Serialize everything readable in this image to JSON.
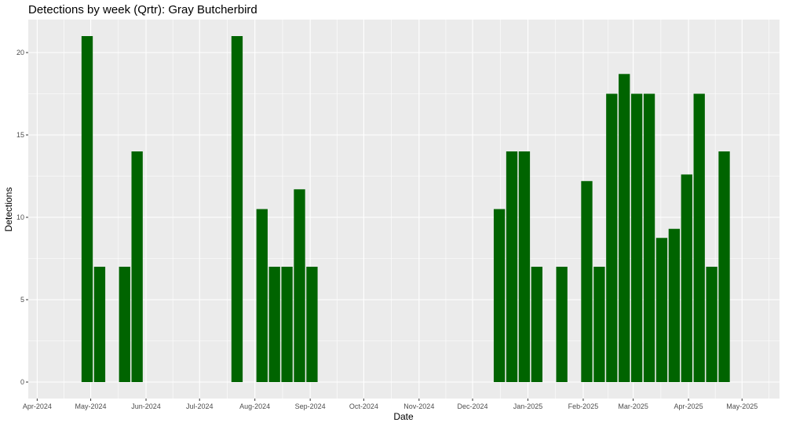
{
  "chart_data": {
    "type": "bar",
    "title": "Detections by week (Qrtr): Gray Butcherbird",
    "xlabel": "Date",
    "ylabel": "Detections",
    "ylim": [
      -1,
      22
    ],
    "y_ticks": [
      0,
      5,
      10,
      15,
      20
    ],
    "x_range": [
      "2024-03-27",
      "2025-05-22"
    ],
    "x_ticks": [
      {
        "date": "2024-04-01",
        "label": "Apr-2024"
      },
      {
        "date": "2024-05-01",
        "label": "May-2024"
      },
      {
        "date": "2024-06-01",
        "label": "Jun-2024"
      },
      {
        "date": "2024-07-01",
        "label": "Jul-2024"
      },
      {
        "date": "2024-08-01",
        "label": "Aug-2024"
      },
      {
        "date": "2024-09-01",
        "label": "Sep-2024"
      },
      {
        "date": "2024-10-01",
        "label": "Oct-2024"
      },
      {
        "date": "2024-11-01",
        "label": "Nov-2024"
      },
      {
        "date": "2024-12-01",
        "label": "Dec-2024"
      },
      {
        "date": "2025-01-01",
        "label": "Jan-2025"
      },
      {
        "date": "2025-02-01",
        "label": "Feb-2025"
      },
      {
        "date": "2025-03-01",
        "label": "Mar-2025"
      },
      {
        "date": "2025-04-01",
        "label": "Apr-2025"
      },
      {
        "date": "2025-05-01",
        "label": "May-2025"
      }
    ],
    "grid": true,
    "bar_color": "#006400",
    "panel_background": "#ebebeb",
    "grid_color": "#ffffff",
    "data": [
      {
        "date": "2024-04-29",
        "value": 21
      },
      {
        "date": "2024-05-06",
        "value": 7
      },
      {
        "date": "2024-05-20",
        "value": 7
      },
      {
        "date": "2024-05-27",
        "value": 14
      },
      {
        "date": "2024-07-22",
        "value": 21
      },
      {
        "date": "2024-08-05",
        "value": 10.5
      },
      {
        "date": "2024-08-12",
        "value": 7
      },
      {
        "date": "2024-08-19",
        "value": 7
      },
      {
        "date": "2024-08-26",
        "value": 11.7
      },
      {
        "date": "2024-09-02",
        "value": 7
      },
      {
        "date": "2024-12-16",
        "value": 10.5
      },
      {
        "date": "2024-12-23",
        "value": 14
      },
      {
        "date": "2024-12-30",
        "value": 14
      },
      {
        "date": "2025-01-06",
        "value": 7
      },
      {
        "date": "2025-01-20",
        "value": 7
      },
      {
        "date": "2025-02-03",
        "value": 12.2
      },
      {
        "date": "2025-02-10",
        "value": 7
      },
      {
        "date": "2025-02-17",
        "value": 17.5
      },
      {
        "date": "2025-02-24",
        "value": 18.7
      },
      {
        "date": "2025-03-03",
        "value": 17.5
      },
      {
        "date": "2025-03-10",
        "value": 17.5
      },
      {
        "date": "2025-03-17",
        "value": 8.75
      },
      {
        "date": "2025-03-24",
        "value": 9.3
      },
      {
        "date": "2025-03-31",
        "value": 12.6
      },
      {
        "date": "2025-04-07",
        "value": 17.5
      },
      {
        "date": "2025-04-14",
        "value": 7
      },
      {
        "date": "2025-04-21",
        "value": 14
      }
    ]
  }
}
